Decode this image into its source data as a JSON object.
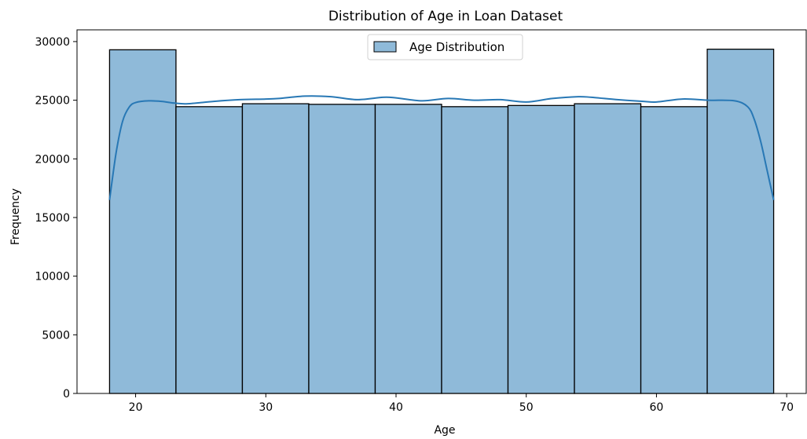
{
  "chart_data": {
    "type": "bar",
    "subtype": "histogram",
    "title": "Distribution of Age in Loan Dataset",
    "xlabel": "Age",
    "ylabel": "Frequency",
    "xlim": [
      15.5,
      71.5
    ],
    "ylim": [
      0,
      31000
    ],
    "xticks": [
      20,
      30,
      40,
      50,
      60,
      70
    ],
    "yticks": [
      0,
      5000,
      10000,
      15000,
      20000,
      25000,
      30000
    ],
    "bins": [
      {
        "x0": 18.0,
        "x1": 23.1,
        "value": 29300
      },
      {
        "x0": 23.1,
        "x1": 28.2,
        "value": 24450
      },
      {
        "x0": 28.2,
        "x1": 33.3,
        "value": 24700
      },
      {
        "x0": 33.3,
        "x1": 38.4,
        "value": 24650
      },
      {
        "x0": 38.4,
        "x1": 43.5,
        "value": 24650
      },
      {
        "x0": 43.5,
        "x1": 48.6,
        "value": 24450
      },
      {
        "x0": 48.6,
        "x1": 53.7,
        "value": 24550
      },
      {
        "x0": 53.7,
        "x1": 58.8,
        "value": 24700
      },
      {
        "x0": 58.8,
        "x1": 63.9,
        "value": 24450
      },
      {
        "x0": 63.9,
        "x1": 69.0,
        "value": 29350
      }
    ],
    "kde": {
      "x": [
        18,
        18.5,
        19,
        19.5,
        20,
        21,
        22,
        23,
        24,
        26,
        28,
        30,
        31,
        33,
        35,
        37,
        39,
        40,
        42,
        44,
        46,
        48,
        50,
        52,
        54,
        55,
        57,
        59,
        60,
        62,
        64,
        66,
        67,
        67.5,
        68,
        68.5,
        69
      ],
      "y": [
        16500,
        20500,
        23200,
        24400,
        24800,
        24950,
        24900,
        24750,
        24700,
        24900,
        25050,
        25100,
        25150,
        25350,
        25300,
        25050,
        25250,
        25200,
        24950,
        25150,
        25000,
        25050,
        24850,
        25150,
        25300,
        25250,
        25050,
        24900,
        24850,
        25100,
        25000,
        24950,
        24450,
        23400,
        21500,
        19000,
        16500
      ]
    },
    "legend": {
      "entries": [
        "Age Distribution"
      ],
      "position": "upper-center"
    },
    "colors": {
      "bar_fill": "#8fbad9",
      "bar_edge": "#000000",
      "kde_line": "#2878b5"
    },
    "grid": false
  }
}
